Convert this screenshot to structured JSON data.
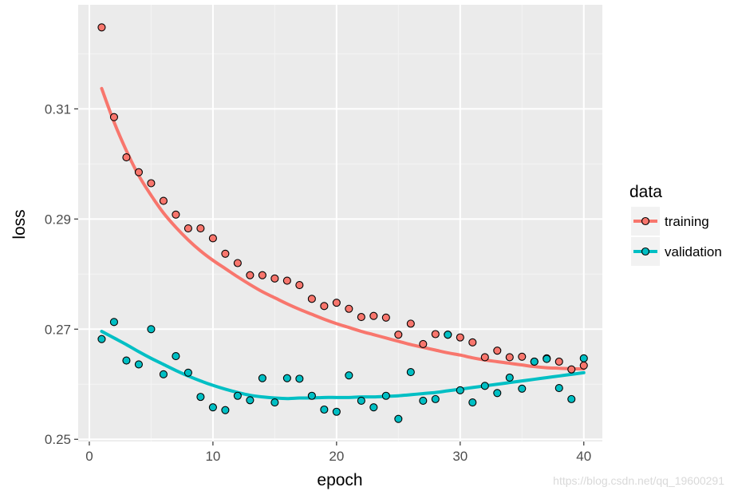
{
  "chart_data": {
    "type": "scatter",
    "xlabel": "epoch",
    "ylabel": "loss",
    "xlim": [
      -0.9,
      41.5
    ],
    "ylim": [
      0.2496,
      0.3289
    ],
    "x_ticks": [
      0,
      10,
      20,
      30,
      40
    ],
    "x_tick_labels": [
      "0",
      "10",
      "20",
      "30",
      "40"
    ],
    "y_ticks": [
      0.25,
      0.27,
      0.29,
      0.31
    ],
    "y_tick_labels": [
      "0.25",
      "0.27",
      "0.29",
      "0.31"
    ],
    "grid": true,
    "legend": {
      "title": "data",
      "position": "right"
    },
    "smooth": true,
    "series": [
      {
        "name": "training",
        "color": "#F8766D",
        "x": [
          1,
          2,
          3,
          4,
          5,
          6,
          7,
          8,
          9,
          10,
          11,
          12,
          13,
          14,
          15,
          16,
          17,
          18,
          19,
          20,
          21,
          22,
          23,
          24,
          25,
          26,
          27,
          28,
          29,
          30,
          31,
          32,
          33,
          34,
          35,
          36,
          37,
          38,
          39,
          40
        ],
        "y": [
          0.3248,
          0.3085,
          0.3012,
          0.2985,
          0.2965,
          0.2933,
          0.2908,
          0.2883,
          0.2883,
          0.2865,
          0.2837,
          0.282,
          0.2798,
          0.2798,
          0.2792,
          0.2788,
          0.278,
          0.2755,
          0.2742,
          0.2748,
          0.2737,
          0.2722,
          0.2724,
          0.2721,
          0.269,
          0.271,
          0.2673,
          0.2691,
          0.269,
          0.2685,
          0.2676,
          0.2649,
          0.2661,
          0.2649,
          0.265,
          0.2641,
          0.2647,
          0.2641,
          0.2627,
          0.2634
        ],
        "trend_y": [
          0.3137,
          0.3076,
          0.3024,
          0.2979,
          0.2943,
          0.2911,
          0.2885,
          0.2862,
          0.2842,
          0.2825,
          0.281,
          0.2795,
          0.2781,
          0.2768,
          0.2757,
          0.2746,
          0.2736,
          0.2727,
          0.2718,
          0.271,
          0.2703,
          0.2696,
          0.269,
          0.2684,
          0.2678,
          0.2672,
          0.2667,
          0.2662,
          0.2657,
          0.2653,
          0.2648,
          0.2644,
          0.2641,
          0.2638,
          0.2635,
          0.2632,
          0.263,
          0.2629,
          0.2628,
          0.2628
        ]
      },
      {
        "name": "validation",
        "color": "#00BFC4",
        "x": [
          1,
          2,
          3,
          4,
          5,
          6,
          7,
          8,
          9,
          10,
          11,
          12,
          13,
          14,
          15,
          16,
          17,
          18,
          19,
          20,
          21,
          22,
          23,
          24,
          25,
          26,
          27,
          28,
          29,
          30,
          31,
          32,
          33,
          34,
          35,
          36,
          37,
          38,
          39,
          40
        ],
        "y": [
          0.2682,
          0.2713,
          0.2643,
          0.2636,
          0.27,
          0.2618,
          0.2651,
          0.2621,
          0.2577,
          0.2558,
          0.2553,
          0.2579,
          0.2571,
          0.2611,
          0.2567,
          0.2611,
          0.261,
          0.2579,
          0.2554,
          0.255,
          0.2616,
          0.257,
          0.2558,
          0.2579,
          0.2537,
          0.2622,
          0.257,
          0.2573,
          0.269,
          0.2589,
          0.2567,
          0.2597,
          0.2584,
          0.2612,
          0.2592,
          0.2641,
          0.2646,
          0.2593,
          0.2573,
          0.2647
        ],
        "trend_y": [
          0.2696,
          0.2684,
          0.2672,
          0.2659,
          0.2647,
          0.2636,
          0.2625,
          0.2615,
          0.2606,
          0.2598,
          0.2591,
          0.2585,
          0.258,
          0.2577,
          0.2575,
          0.2574,
          0.2575,
          0.2575,
          0.2576,
          0.2576,
          0.2576,
          0.2577,
          0.2577,
          0.2578,
          0.2579,
          0.2581,
          0.2583,
          0.2585,
          0.2588,
          0.2591,
          0.2594,
          0.2597,
          0.26,
          0.2603,
          0.2606,
          0.2609,
          0.2612,
          0.2615,
          0.2618,
          0.2621
        ]
      }
    ]
  },
  "watermark": "https://blog.csdn.net/qq_19600291"
}
